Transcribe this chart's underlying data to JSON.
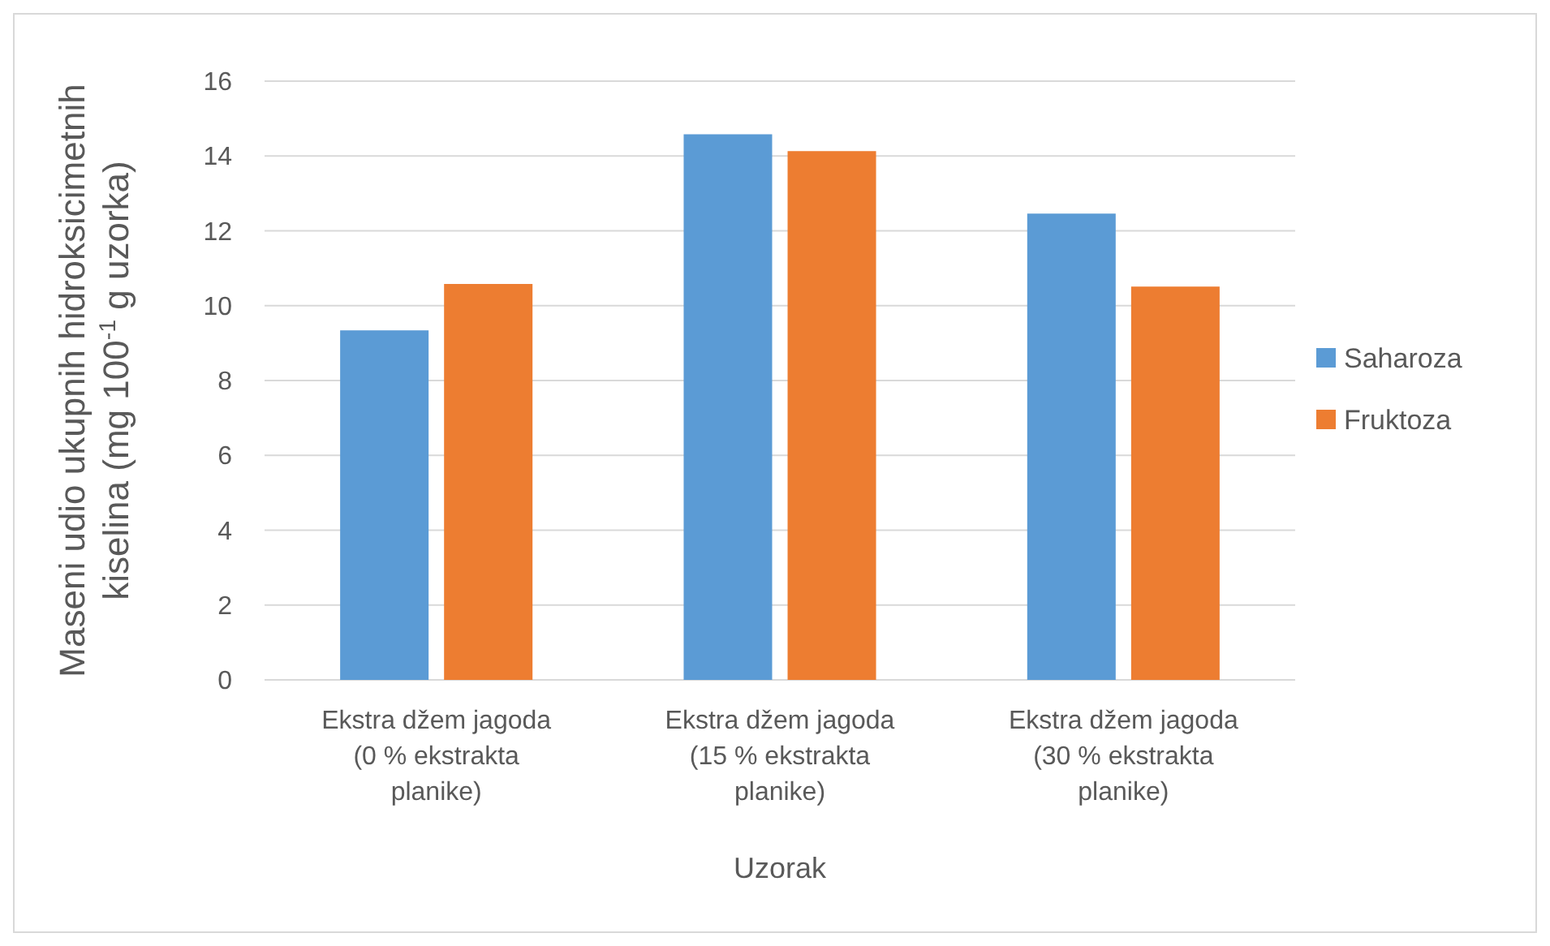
{
  "chart_data": {
    "type": "bar",
    "xlabel": "Uzorak",
    "ylabel": "Maseni udio ukupnih hidroksicimetnih\nkiselina (mg 100$^{-1}$ g uzorka)",
    "categories": [
      "Ekstra džem jagoda\n(0 % ekstrakta\nplanike)",
      "Ekstra džem jagoda\n(15 % ekstrakta\nplanike)",
      "Ekstra džem jagoda\n(30 % ekstrakta\nplanike)"
    ],
    "series": [
      {
        "name": "Saharoza",
        "color": "#5b9bd5",
        "values": [
          9.34,
          14.58,
          12.46
        ]
      },
      {
        "name": "Fruktoza",
        "color": "#ed7d31",
        "values": [
          10.58,
          14.13,
          10.51
        ]
      }
    ],
    "ylim": [
      0,
      16
    ],
    "yticks": [
      0,
      2,
      4,
      6,
      8,
      10,
      12,
      14,
      16
    ],
    "grid": "y",
    "legend": "right"
  }
}
